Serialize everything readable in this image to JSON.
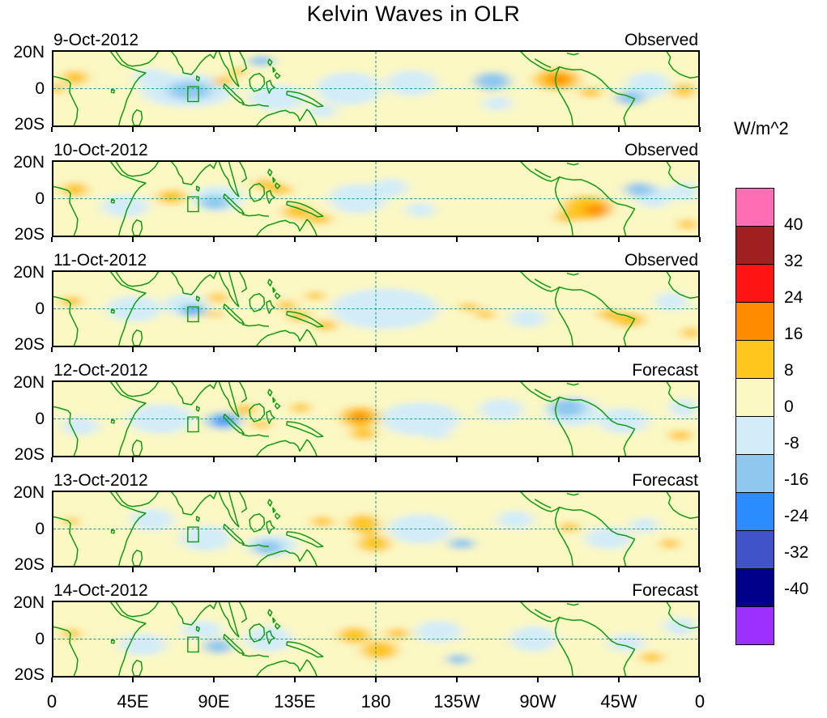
{
  "title": "Kelvin Waves in OLR",
  "colorbar": {
    "units_label": "W/m^2",
    "tick_labels": [
      "40",
      "32",
      "24",
      "16",
      "8",
      "0",
      "-8",
      "-16",
      "-24",
      "-32",
      "-40"
    ],
    "colors_top_to_bottom": [
      "#FF6EB4",
      "#A02020",
      "#FF1414",
      "#FF8C00",
      "#FFC61E",
      "#FBF8C4",
      "#D2ECF8",
      "#8FC8EE",
      "#2B8CFF",
      "#4053C8",
      "#00008B",
      "#9B30FF"
    ]
  },
  "x_axis": {
    "tick_labels": [
      "0",
      "45E",
      "90E",
      "135E",
      "180",
      "135W",
      "90W",
      "45W",
      "0"
    ],
    "tick_positions_deg": [
      0,
      45,
      90,
      135,
      180,
      225,
      270,
      315,
      360
    ]
  },
  "y_axis": {
    "tick_labels": [
      "20N",
      "0",
      "20S"
    ]
  },
  "map": {
    "background_color": "#FBF8C4",
    "coast_color": "#0F9B0F",
    "dashed_line_color": "#1F9E8E",
    "dateline_deg": 180,
    "box_marker": {
      "lon_min": 75,
      "lon_max": 81,
      "lat_min": -7,
      "lat_max": 1
    }
  },
  "chart_data": {
    "type": "heatmap",
    "title": "Kelvin Waves in OLR",
    "units": "W/m^2",
    "lon_range": [
      0,
      360
    ],
    "lat_range": [
      -20,
      20
    ],
    "contour_levels": [
      -40,
      -32,
      -24,
      -16,
      -8,
      0,
      8,
      16,
      24,
      32,
      40
    ],
    "anomaly_format": [
      "lon_deg_east",
      "lat_deg_north",
      "radius_lon_deg",
      "radius_lat_deg",
      "olr_anomaly_wm2"
    ],
    "panels": [
      {
        "date": "9-Oct-2012",
        "mode": "Observed",
        "anomalies": [
          [
            12,
            6,
            7,
            4,
            12
          ],
          [
            2,
            0,
            4,
            3,
            12
          ],
          [
            55,
            6,
            10,
            5,
            -4
          ],
          [
            75,
            -1,
            26,
            9,
            -4
          ],
          [
            76,
            -1,
            12,
            5,
            -12
          ],
          [
            95,
            4,
            5,
            3,
            12
          ],
          [
            103,
            9,
            4,
            2.5,
            12
          ],
          [
            116,
            15,
            7,
            3,
            -12
          ],
          [
            125,
            -5,
            16,
            7,
            -4
          ],
          [
            150,
            -12,
            8,
            4,
            -4
          ],
          [
            165,
            0,
            18,
            9,
            -4
          ],
          [
            200,
            3,
            14,
            7,
            -4
          ],
          [
            245,
            4,
            10,
            5,
            -12
          ],
          [
            248,
            -8,
            8,
            4,
            -4
          ],
          [
            281,
            5,
            13,
            6,
            12
          ],
          [
            282,
            5,
            6,
            3,
            20
          ],
          [
            300,
            -2,
            6,
            3,
            12
          ],
          [
            322,
            -5,
            8,
            4,
            -12
          ],
          [
            332,
            2,
            12,
            7,
            -4
          ],
          [
            352,
            -1,
            6,
            4,
            12
          ]
        ]
      },
      {
        "date": "10-Oct-2012",
        "mode": "Observed",
        "anomalies": [
          [
            12,
            5,
            7,
            4,
            12
          ],
          [
            40,
            -4,
            13,
            6,
            -4
          ],
          [
            66,
            1,
            8,
            4,
            12
          ],
          [
            90,
            -2,
            8,
            4,
            -12
          ],
          [
            92,
            0,
            14,
            7,
            -4
          ],
          [
            118,
            8,
            6,
            3,
            12
          ],
          [
            126,
            5,
            7,
            3,
            12
          ],
          [
            136,
            -7,
            8,
            4,
            12
          ],
          [
            148,
            -11,
            7,
            3,
            12
          ],
          [
            170,
            0,
            16,
            8,
            -4
          ],
          [
            188,
            6,
            10,
            5,
            -4
          ],
          [
            205,
            -6,
            8,
            4,
            -4
          ],
          [
            298,
            -5,
            14,
            7,
            12
          ],
          [
            303,
            -6,
            7,
            3,
            20
          ],
          [
            286,
            -10,
            6,
            3,
            12
          ],
          [
            327,
            5,
            8,
            4,
            -12
          ],
          [
            335,
            1,
            10,
            6,
            -4
          ],
          [
            352,
            4,
            8,
            5,
            -4
          ],
          [
            354,
            -14,
            5,
            3,
            12
          ]
        ]
      },
      {
        "date": "11-Oct-2012",
        "mode": "Observed",
        "anomalies": [
          [
            10,
            4,
            6,
            3,
            12
          ],
          [
            45,
            0,
            15,
            7,
            -4
          ],
          [
            74,
            2,
            12,
            6,
            -4
          ],
          [
            78,
            -1,
            7,
            3.5,
            -12
          ],
          [
            78,
            -1,
            3,
            2,
            -20
          ],
          [
            92,
            6,
            5,
            3,
            12
          ],
          [
            90,
            -3,
            4,
            2,
            12
          ],
          [
            130,
            2,
            5,
            3,
            12
          ],
          [
            137,
            -4,
            6,
            3,
            12
          ],
          [
            146,
            7,
            5,
            2.5,
            12
          ],
          [
            152,
            -9,
            6,
            3,
            12
          ],
          [
            185,
            0,
            30,
            11,
            -4
          ],
          [
            182,
            2,
            10,
            5,
            -4
          ],
          [
            232,
            1,
            5,
            2.5,
            12
          ],
          [
            241,
            -3,
            5,
            2.5,
            12
          ],
          [
            265,
            -5,
            10,
            5,
            -4
          ],
          [
            310,
            -3,
            6,
            3,
            12
          ],
          [
            321,
            -6,
            9,
            4,
            12
          ],
          [
            345,
            4,
            9,
            5,
            -4
          ],
          [
            356,
            -13,
            5,
            3,
            12
          ]
        ]
      },
      {
        "date": "12-Oct-2012",
        "mode": "Forecast",
        "anomalies": [
          [
            15,
            -4,
            10,
            5,
            -4
          ],
          [
            60,
            0,
            18,
            8,
            -4
          ],
          [
            95,
            -1,
            10,
            5,
            -12
          ],
          [
            95,
            -1,
            5,
            2.5,
            -20
          ],
          [
            107,
            5,
            6,
            3,
            12
          ],
          [
            116,
            -3,
            5,
            2.5,
            12
          ],
          [
            138,
            6,
            5,
            3,
            12
          ],
          [
            171,
            1,
            11,
            6,
            12
          ],
          [
            171,
            1,
            5,
            3,
            20
          ],
          [
            173,
            -8,
            7,
            3.5,
            12
          ],
          [
            205,
            0,
            22,
            9,
            -4
          ],
          [
            214,
            -8,
            7,
            3,
            -4
          ],
          [
            250,
            5,
            12,
            6,
            -4
          ],
          [
            287,
            6,
            10,
            5,
            -12
          ],
          [
            290,
            4,
            15,
            8,
            -4
          ],
          [
            318,
            -1,
            14,
            7,
            -4
          ],
          [
            350,
            -9,
            6,
            3,
            12
          ],
          [
            352,
            6,
            8,
            5,
            -4
          ]
        ]
      },
      {
        "date": "13-Oct-2012",
        "mode": "Forecast",
        "anomalies": [
          [
            10,
            4,
            4,
            2.5,
            12
          ],
          [
            55,
            5,
            12,
            6,
            -4
          ],
          [
            85,
            -5,
            14,
            7,
            -4
          ],
          [
            122,
            -9,
            14,
            6,
            -4
          ],
          [
            120,
            -10,
            8,
            4,
            -12
          ],
          [
            150,
            4,
            6,
            3,
            12
          ],
          [
            173,
            3,
            9,
            5,
            12
          ],
          [
            179,
            -8,
            9,
            4.5,
            12
          ],
          [
            176,
            -1,
            5,
            3,
            12
          ],
          [
            205,
            0,
            18,
            8,
            -4
          ],
          [
            228,
            -8,
            7,
            3,
            -12
          ],
          [
            258,
            5,
            10,
            5,
            -4
          ],
          [
            288,
            1,
            5,
            3,
            12
          ],
          [
            310,
            -5,
            13,
            6,
            -4
          ],
          [
            330,
            2,
            8,
            4,
            -4
          ],
          [
            344,
            -8,
            5,
            3,
            12
          ]
        ]
      },
      {
        "date": "14-Oct-2012",
        "mode": "Forecast",
        "anomalies": [
          [
            10,
            3,
            5,
            3,
            12
          ],
          [
            50,
            -3,
            13,
            6,
            -4
          ],
          [
            83,
            5,
            11,
            5,
            -4
          ],
          [
            92,
            -4,
            8,
            4,
            -12
          ],
          [
            120,
            0,
            13,
            7,
            -4
          ],
          [
            168,
            2,
            9,
            4.5,
            12
          ],
          [
            182,
            -6,
            10,
            5,
            12
          ],
          [
            192,
            3,
            6,
            3,
            12
          ],
          [
            215,
            4,
            13,
            6,
            -4
          ],
          [
            226,
            -11,
            6,
            3,
            -12
          ],
          [
            268,
            0,
            13,
            7,
            -4
          ],
          [
            320,
            -2,
            10,
            5,
            -4
          ],
          [
            334,
            -10,
            6,
            3,
            12
          ],
          [
            350,
            7,
            9,
            5,
            -4
          ]
        ]
      }
    ]
  }
}
